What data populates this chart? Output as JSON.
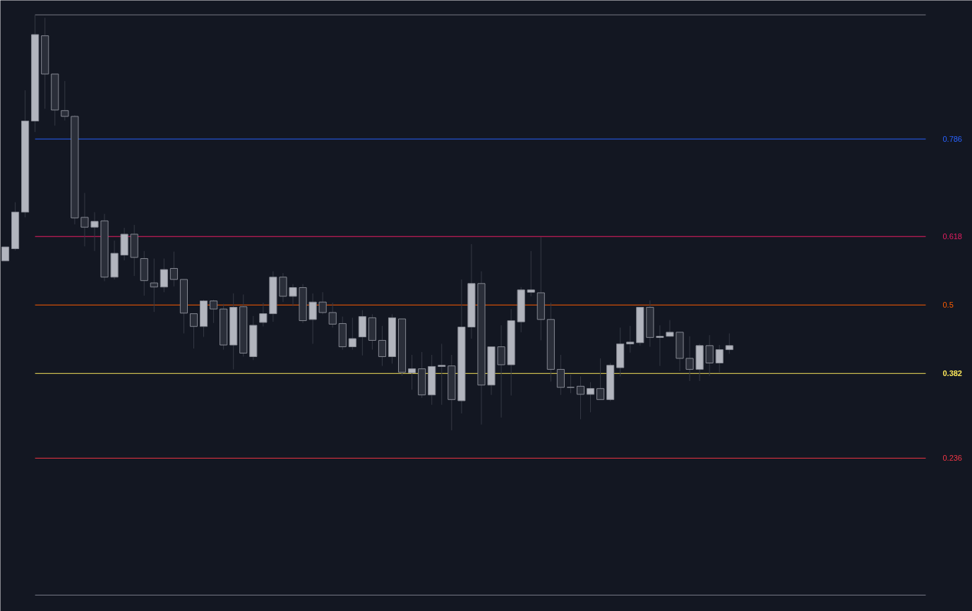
{
  "chart_data": {
    "type": "candlestick",
    "categories": [
      null,
      null,
      null,
      null,
      null,
      null,
      null,
      null,
      null,
      null,
      null,
      null,
      null,
      null,
      null,
      null,
      null,
      null,
      null,
      null,
      null,
      null,
      null,
      null,
      null,
      null,
      null,
      null,
      null,
      null,
      null,
      null,
      null,
      null,
      null,
      null,
      null,
      null,
      null,
      null,
      null,
      null,
      null,
      null,
      null,
      null,
      null,
      null,
      null,
      null,
      null,
      null,
      null,
      null,
      null,
      null,
      null,
      null,
      null,
      null,
      null,
      null,
      null,
      null,
      null,
      null,
      null,
      null,
      null,
      null,
      null,
      null,
      null,
      null,
      null,
      null,
      null,
      null,
      null,
      null,
      null,
      null,
      null,
      null,
      null,
      null,
      null,
      null,
      null,
      null,
      null,
      null,
      null,
      null,
      null,
      null,
      null,
      null
    ],
    "ohlc": [
      [
        0.576,
        0.6,
        0.576,
        0.6
      ],
      [
        0.597,
        0.677,
        0.594,
        0.66
      ],
      [
        0.66,
        0.87,
        0.651,
        0.817
      ],
      [
        0.817,
        1.0,
        0.798,
        0.966
      ],
      [
        0.964,
        0.995,
        0.838,
        0.898
      ],
      [
        0.898,
        0.898,
        0.809,
        0.836
      ],
      [
        0.835,
        0.886,
        0.818,
        0.825
      ],
      [
        0.825,
        0.827,
        0.639,
        0.65
      ],
      [
        0.651,
        0.693,
        0.601,
        0.634
      ],
      [
        0.634,
        0.66,
        0.593,
        0.644
      ],
      [
        0.645,
        0.657,
        0.541,
        0.548
      ],
      [
        0.548,
        0.611,
        0.544,
        0.589
      ],
      [
        0.586,
        0.633,
        0.577,
        0.622
      ],
      [
        0.622,
        0.638,
        0.55,
        0.582
      ],
      [
        0.58,
        0.593,
        0.516,
        0.542
      ],
      [
        0.538,
        0.58,
        0.488,
        0.531
      ],
      [
        0.531,
        0.58,
        0.522,
        0.561
      ],
      [
        0.563,
        0.592,
        0.532,
        0.544
      ],
      [
        0.544,
        0.544,
        0.451,
        0.486
      ],
      [
        0.485,
        0.485,
        0.425,
        0.463
      ],
      [
        0.463,
        0.509,
        0.445,
        0.507
      ],
      [
        0.507,
        0.509,
        0.469,
        0.493
      ],
      [
        0.493,
        0.502,
        0.423,
        0.431
      ],
      [
        0.431,
        0.52,
        0.389,
        0.496
      ],
      [
        0.497,
        0.518,
        0.411,
        0.417
      ],
      [
        0.411,
        0.481,
        0.405,
        0.465
      ],
      [
        0.47,
        0.504,
        0.463,
        0.485
      ],
      [
        0.485,
        0.558,
        0.471,
        0.548
      ],
      [
        0.548,
        0.555,
        0.505,
        0.515
      ],
      [
        0.515,
        0.536,
        0.498,
        0.53
      ],
      [
        0.53,
        0.536,
        0.469,
        0.473
      ],
      [
        0.475,
        0.52,
        0.433,
        0.505
      ],
      [
        0.505,
        0.522,
        0.484,
        0.487
      ],
      [
        0.487,
        0.504,
        0.461,
        0.467
      ],
      [
        0.468,
        0.48,
        0.423,
        0.428
      ],
      [
        0.428,
        0.478,
        0.423,
        0.442
      ],
      [
        0.445,
        0.491,
        0.413,
        0.48
      ],
      [
        0.478,
        0.484,
        0.423,
        0.439
      ],
      [
        0.439,
        0.464,
        0.395,
        0.411
      ],
      [
        0.411,
        0.484,
        0.399,
        0.478
      ],
      [
        0.476,
        0.476,
        0.378,
        0.384
      ],
      [
        0.383,
        0.414,
        0.354,
        0.39
      ],
      [
        0.39,
        0.419,
        0.34,
        0.345
      ],
      [
        0.345,
        0.414,
        0.328,
        0.394
      ],
      [
        0.394,
        0.433,
        0.328,
        0.396
      ],
      [
        0.395,
        0.414,
        0.284,
        0.337
      ],
      [
        0.335,
        0.544,
        0.313,
        0.462
      ],
      [
        0.462,
        0.605,
        0.442,
        0.537
      ],
      [
        0.537,
        0.558,
        0.294,
        0.362
      ],
      [
        0.362,
        0.428,
        0.345,
        0.428
      ],
      [
        0.428,
        0.465,
        0.306,
        0.397
      ],
      [
        0.397,
        0.493,
        0.344,
        0.473
      ],
      [
        0.471,
        0.531,
        0.453,
        0.526
      ],
      [
        0.522,
        0.593,
        0.515,
        0.526
      ],
      [
        0.521,
        0.617,
        0.439,
        0.475
      ],
      [
        0.475,
        0.504,
        0.368,
        0.389
      ],
      [
        0.389,
        0.414,
        0.345,
        0.358
      ],
      [
        0.358,
        0.38,
        0.348,
        0.358
      ],
      [
        0.36,
        0.377,
        0.303,
        0.346
      ],
      [
        0.346,
        0.367,
        0.315,
        0.356
      ],
      [
        0.356,
        0.408,
        0.337,
        0.337
      ],
      [
        0.337,
        0.4,
        0.334,
        0.396
      ],
      [
        0.392,
        0.461,
        0.377,
        0.433
      ],
      [
        0.433,
        0.464,
        0.418,
        0.436
      ],
      [
        0.435,
        0.496,
        0.43,
        0.496
      ],
      [
        0.496,
        0.508,
        0.428,
        0.444
      ],
      [
        0.444,
        0.465,
        0.395,
        0.446
      ],
      [
        0.446,
        0.474,
        0.445,
        0.453
      ],
      [
        0.453,
        0.453,
        0.386,
        0.408
      ],
      [
        0.408,
        0.446,
        0.369,
        0.389
      ],
      [
        0.389,
        0.433,
        0.369,
        0.43
      ],
      [
        0.43,
        0.448,
        0.378,
        0.4
      ],
      [
        0.4,
        0.431,
        0.384,
        0.423
      ],
      [
        0.423,
        0.451,
        0.416,
        0.43
      ],
      null,
      null,
      null,
      null,
      null,
      null,
      null,
      null,
      null,
      null,
      null,
      null,
      null,
      null,
      null,
      null,
      null,
      null,
      null,
      null,
      null,
      null,
      null,
      null
    ],
    "colors": [
      "#b2b5be",
      "#b2b5be",
      "#b2b5be",
      "#b2b5be",
      "#2a2e39",
      "#2a2e39",
      "#2a2e39",
      "#2a2e39",
      "#2a2e39",
      "#b2b5be",
      "#2a2e39",
      "#b2b5be",
      "#b2b5be",
      "#2a2e39",
      "#2a2e39",
      "#2a2e39",
      "#b2b5be",
      "#2a2e39",
      "#2a2e39",
      "#2a2e39",
      "#b2b5be",
      "#2a2e39",
      "#2a2e39",
      "#b2b5be",
      "#2a2e39",
      "#b2b5be",
      "#b2b5be",
      "#b2b5be",
      "#2a2e39",
      "#b2b5be",
      "#2a2e39",
      "#b2b5be",
      "#2a2e39",
      "#2a2e39",
      "#2a2e39",
      "#b2b5be",
      "#b2b5be",
      "#2a2e39",
      "#2a2e39",
      "#b2b5be",
      "#2a2e39",
      "#b2b5be",
      "#2a2e39",
      "#b2b5be",
      "#b2b5be",
      "#2a2e39",
      "#b2b5be",
      "#b2b5be",
      "#2a2e39",
      "#b2b5be",
      "#2a2e39",
      "#b2b5be",
      "#b2b5be",
      "#b2b5be",
      "#2a2e39",
      "#2a2e39",
      "#2a2e39",
      "#868993",
      "#2a2e39",
      "#b2b5be",
      "#2a2e39",
      "#b2b5be",
      "#b2b5be",
      "#b2b5be",
      "#b2b5be",
      "#2a2e39",
      "#b2b5be",
      "#b2b5be",
      "#2a2e39",
      "#2a2e39",
      "#b2b5be",
      "#2a2e39",
      "#b2b5be",
      "#b2b5be",
      null,
      null,
      null,
      null,
      null,
      null,
      null,
      null,
      null,
      null,
      null,
      null,
      null,
      null,
      null,
      null,
      null,
      null,
      null,
      null,
      null,
      null,
      null,
      null
    ],
    "ylim": [
      -0.028,
      1.025
    ],
    "yticks": [
      0.786,
      0.618,
      0.5,
      0.382,
      0.236
    ],
    "ref_lines": [
      {
        "axis": "y",
        "value": 1,
        "color": "#787b86"
      },
      {
        "axis": "y",
        "value": 0.786,
        "color": "#2962ff"
      },
      {
        "axis": "y",
        "value": 0.618,
        "color": "#e91e63"
      },
      {
        "axis": "y",
        "value": 0.5,
        "color": "#ff5d00"
      },
      {
        "axis": "y",
        "value": 0.382,
        "color": "#f7e35a"
      },
      {
        "axis": "y",
        "value": 0.236,
        "color": "#f23645"
      },
      {
        "axis": "y",
        "value": 0,
        "color": "#787b86"
      }
    ],
    "tick_labels": "y"
  }
}
